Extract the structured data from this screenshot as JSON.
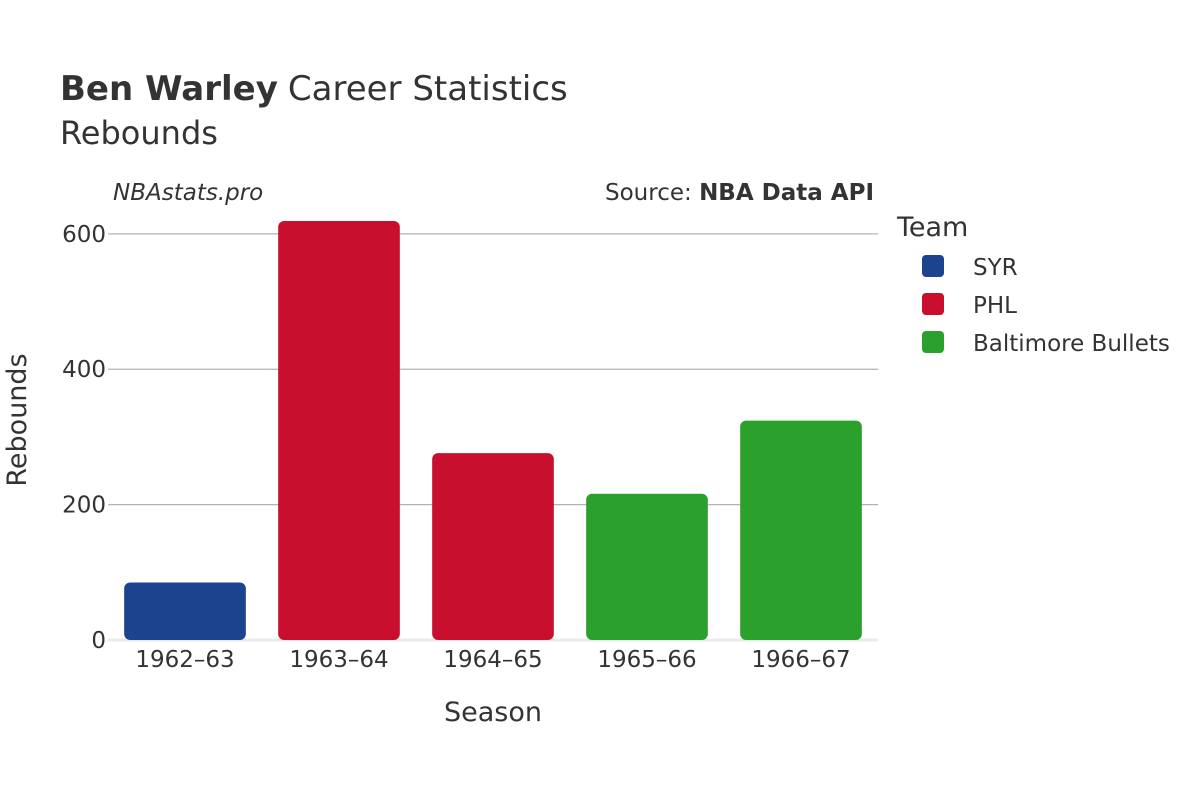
{
  "header": {
    "player_name": "Ben Warley",
    "title_rest": "Career Statistics",
    "subtitle": "Rebounds"
  },
  "watermark": "NBAstats.pro",
  "source": {
    "prefix": "Source: ",
    "name": "NBA Data API"
  },
  "legend": {
    "title": "Team",
    "items": [
      {
        "label": "SYR",
        "color": "#1b438e"
      },
      {
        "label": "PHL",
        "color": "#c8102e"
      },
      {
        "label": "Baltimore Bullets",
        "color": "#2ca02c"
      }
    ]
  },
  "chart_data": {
    "type": "bar",
    "categories": [
      "1962–63",
      "1963–64",
      "1964–65",
      "1965–66",
      "1966–67"
    ],
    "values": [
      85,
      619,
      276,
      216,
      324
    ],
    "teams": [
      "SYR",
      "PHL",
      "PHL",
      "Baltimore Bullets",
      "Baltimore Bullets"
    ],
    "colors": [
      "#1b438e",
      "#c8102e",
      "#c8102e",
      "#2ca02c",
      "#2ca02c"
    ],
    "xlabel": "Season",
    "ylabel": "Rebounds",
    "ylim": [
      0,
      650
    ],
    "yticks": [
      0,
      200,
      400,
      600
    ],
    "grid": true,
    "legend_position": "right"
  }
}
